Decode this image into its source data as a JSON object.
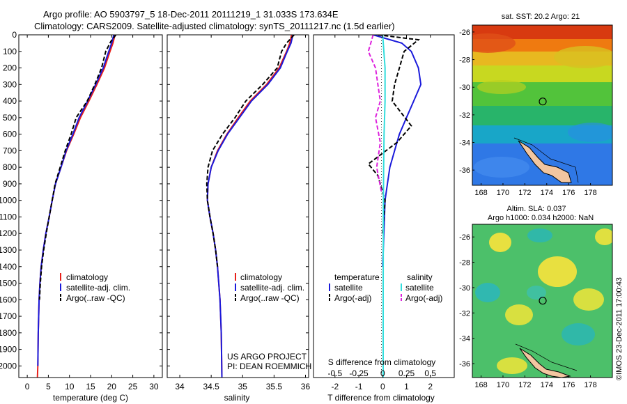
{
  "header": {
    "line1": "Argo profile: AO 5903797_5 18-Dec-2011 20111219_1 31.033S 173.634E",
    "line2": "Climatology: CARS2009. Satellite-adjusted climatology: synTS_20111217.nc (1.5d earlier)"
  },
  "colors": {
    "climatology": "#e8201a",
    "satellite": "#1a1adb",
    "argo": "#000000",
    "sat_salinity": "#33dddd",
    "argo_salinity": "#dd22dd"
  },
  "chart_data": [
    {
      "type": "line",
      "panel": "temperature",
      "xlabel": "temperature (deg C)",
      "xlim": [
        -2,
        32
      ],
      "ylim": [
        2070,
        0
      ],
      "y_reversed": true,
      "xticks": [
        0,
        5,
        10,
        15,
        20,
        25,
        30
      ],
      "yticks": [
        0,
        100,
        200,
        300,
        400,
        500,
        600,
        700,
        800,
        900,
        1000,
        1100,
        1200,
        1300,
        1400,
        1500,
        1600,
        1700,
        1800,
        1900,
        2000
      ],
      "legend": [
        "climatology",
        "satellite-adj. clim.",
        "Argo(..raw -QC)"
      ],
      "series": [
        {
          "name": "climatology",
          "color": "#e8201a",
          "dash": "",
          "x": [
            20.8,
            20.3,
            19.6,
            18.3,
            16.5,
            14.6,
            12.6,
            11.0,
            9.3,
            8.0,
            6.7,
            5.9,
            5.2,
            4.4,
            3.8,
            3.3,
            3.0,
            2.8,
            2.6,
            2.5,
            2.4
          ],
          "y": [
            0,
            50,
            100,
            200,
            300,
            400,
            500,
            600,
            700,
            800,
            900,
            1000,
            1100,
            1200,
            1300,
            1400,
            1500,
            1600,
            1800,
            2000,
            2070
          ]
        },
        {
          "name": "satellite-adj. clim.",
          "color": "#1a1adb",
          "dash": "",
          "x": [
            20.5,
            20.0,
            19.3,
            18.0,
            16.2,
            14.3,
            12.3,
            10.8,
            9.2,
            8.0,
            6.7,
            5.9,
            5.2,
            4.4,
            3.8,
            3.3,
            3.0,
            2.8,
            2.6,
            2.5
          ],
          "y": [
            0,
            50,
            100,
            200,
            300,
            400,
            500,
            600,
            700,
            800,
            900,
            1000,
            1100,
            1200,
            1300,
            1400,
            1500,
            1600,
            1800,
            2000
          ]
        },
        {
          "name": "Argo(..raw -QC)",
          "color": "#000000",
          "dash": "6,3",
          "x": [
            21.0,
            19.8,
            18.6,
            17.6,
            16.0,
            14.2,
            11.6,
            10.4,
            9.0,
            7.8,
            6.6,
            5.9,
            5.2,
            4.5,
            3.9,
            3.4,
            3.1,
            2.9
          ],
          "y": [
            0,
            40,
            100,
            200,
            300,
            400,
            500,
            600,
            700,
            800,
            900,
            1000,
            1100,
            1200,
            1300,
            1400,
            1500,
            1600
          ]
        }
      ]
    },
    {
      "type": "line",
      "panel": "salinity",
      "xlabel": "salinity",
      "xlim": [
        33.8,
        36.05
      ],
      "ylim": [
        2070,
        0
      ],
      "y_reversed": true,
      "xticks": [
        34,
        34.5,
        35,
        35.5,
        36
      ],
      "legend": [
        "climatology",
        "satellite-adj. clim.",
        "Argo(..raw -QC)"
      ],
      "annotation": [
        "US ARGO PROJECT",
        "PI: DEAN ROEMMICH"
      ],
      "series": [
        {
          "name": "climatology",
          "color": "#e8201a",
          "dash": "",
          "x": [
            35.78,
            35.75,
            35.7,
            35.58,
            35.38,
            35.12,
            34.93,
            34.75,
            34.6,
            34.5,
            34.45,
            34.44,
            34.48,
            34.53,
            34.57,
            34.6,
            34.62,
            34.64,
            34.66,
            34.67
          ],
          "y": [
            0,
            50,
            100,
            200,
            300,
            400,
            500,
            600,
            700,
            800,
            900,
            1000,
            1100,
            1200,
            1300,
            1400,
            1500,
            1600,
            1800,
            2070
          ]
        },
        {
          "name": "satellite-adj. clim.",
          "color": "#1a1adb",
          "dash": "",
          "x": [
            35.8,
            35.77,
            35.71,
            35.6,
            35.4,
            35.14,
            34.95,
            34.76,
            34.61,
            34.5,
            34.45,
            34.44,
            34.48,
            34.53,
            34.57,
            34.6,
            34.62,
            34.64,
            34.66,
            34.67
          ],
          "y": [
            0,
            50,
            100,
            200,
            300,
            400,
            500,
            600,
            700,
            800,
            900,
            1000,
            1100,
            1200,
            1300,
            1400,
            1500,
            1600,
            1800,
            2070
          ]
        },
        {
          "name": "Argo(..raw -QC)",
          "color": "#000000",
          "dash": "6,3",
          "x": [
            35.82,
            35.7,
            35.62,
            35.55,
            35.32,
            35.05,
            34.88,
            34.68,
            34.52,
            34.45,
            34.43,
            34.44,
            34.48,
            34.53,
            34.57,
            34.6
          ],
          "y": [
            0,
            50,
            100,
            200,
            300,
            400,
            500,
            600,
            700,
            800,
            900,
            1000,
            1100,
            1200,
            1300,
            1400
          ]
        }
      ]
    },
    {
      "type": "line",
      "panel": "difference",
      "xlabel": "T difference from climatology",
      "xlabel_top": "S difference from climatology",
      "xlim": [
        -2.9,
        3.0
      ],
      "ylim": [
        2070,
        0
      ],
      "y_reversed": true,
      "xticks": [
        -2,
        -1,
        0,
        1,
        2
      ],
      "xticks_top": [
        -0.5,
        -0.25,
        0,
        0.25,
        0.5
      ],
      "legend_titles": [
        "temperature",
        "salinity"
      ],
      "legend": [
        "satellite",
        "Argo(-adj)",
        "satellite",
        "Argo(-adj)"
      ],
      "series": [
        {
          "name": "satellite",
          "color": "#1a1adb",
          "dash": "",
          "x": [
            -0.4,
            0.8,
            1.2,
            1.5,
            1.6,
            1.3,
            1.0,
            0.7,
            0.5,
            0.3,
            0.2,
            0.1,
            0.05,
            0.0
          ],
          "y": [
            0,
            50,
            100,
            200,
            300,
            400,
            500,
            600,
            700,
            800,
            900,
            1000,
            1200,
            1400
          ]
        },
        {
          "name": "Argo(-adj)",
          "color": "#000000",
          "dash": "6,3",
          "x": [
            -0.2,
            1.5,
            0.9,
            0.7,
            0.5,
            0.4,
            1.2,
            0.6,
            -0.6,
            -0.2,
            0.1,
            0.0
          ],
          "y": [
            0,
            30,
            100,
            200,
            300,
            400,
            550,
            650,
            780,
            850,
            1000,
            1200
          ]
        },
        {
          "name": "satellite",
          "color": "#33dddd",
          "dash": "",
          "x": [
            0.0,
            0.05,
            0.1,
            0.1,
            0.1,
            0.08,
            0.06,
            0.05,
            0.04,
            0.03,
            0.02,
            0.02
          ],
          "y": [
            0,
            100,
            200,
            300,
            400,
            500,
            600,
            700,
            800,
            1000,
            1500,
            2070
          ]
        },
        {
          "name": "Argo(-adj)",
          "color": "#dd22dd",
          "dash": "6,3",
          "x": [
            -0.4,
            -0.5,
            -0.6,
            -0.3,
            -0.2,
            -0.1,
            -0.3,
            -0.1,
            -0.25,
            -0.05
          ],
          "y": [
            0,
            50,
            100,
            200,
            300,
            400,
            500,
            650,
            800,
            950
          ]
        }
      ]
    },
    {
      "type": "heatmap",
      "panel": "map-sst",
      "title": "sat. SST: 20.2 Argo: 21",
      "xlim": [
        167.2,
        180.0
      ],
      "ylim": [
        -37.1,
        -25.5
      ],
      "xticks": [
        168,
        170,
        172,
        174,
        176,
        178
      ],
      "yticks": [
        -26,
        -28,
        -30,
        -32,
        -34,
        -36
      ],
      "marker": {
        "lon": 173.634,
        "lat": -31.033
      }
    },
    {
      "type": "heatmap",
      "panel": "map-sla",
      "title": "Altim. SLA: 0.037",
      "subtitle": "Argo h1000: 0.034 h2000: NaN",
      "xlim": [
        167.2,
        180.0
      ],
      "ylim": [
        -37.1,
        -25.0
      ],
      "xticks": [
        168,
        170,
        172,
        174,
        176,
        178
      ],
      "yticks": [
        -26,
        -28,
        -30,
        -32,
        -34,
        -36
      ],
      "marker": {
        "lon": 173.634,
        "lat": -31.033
      }
    }
  ],
  "credit": "©IMOS 23-Dec-2011 17:00:43"
}
